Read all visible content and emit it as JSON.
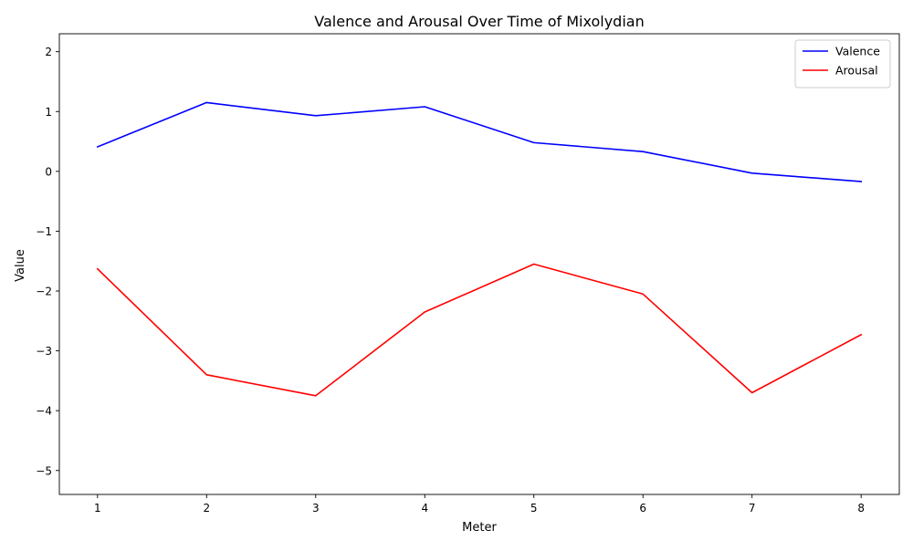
{
  "chart_data": {
    "type": "line",
    "title": "Valence and Arousal Over Time of Mixolydian",
    "xlabel": "Meter",
    "ylabel": "Value",
    "x": [
      1,
      2,
      3,
      4,
      5,
      6,
      7,
      8
    ],
    "xlim": [
      0.65,
      8.35
    ],
    "ylim": [
      -5.4,
      2.3
    ],
    "x_ticks": [
      "1",
      "2",
      "3",
      "4",
      "5",
      "6",
      "7",
      "8"
    ],
    "y_ticks": [
      2,
      1,
      0,
      -1,
      -2,
      -3,
      -4,
      -5
    ],
    "y_tick_labels": [
      "2",
      "1",
      "0",
      "−1",
      "−2",
      "−3",
      "−4",
      "−5"
    ],
    "grid": false,
    "legend_position": "top-right",
    "series": [
      {
        "name": "Valence",
        "color": "#0000ff",
        "values": [
          0.41,
          1.15,
          0.93,
          1.08,
          0.48,
          0.33,
          -0.03,
          -0.17
        ]
      },
      {
        "name": "Arousal",
        "color": "#ff0000",
        "values": [
          -1.63,
          -3.4,
          -3.75,
          -2.35,
          -1.55,
          -2.05,
          -3.7,
          -2.73
        ]
      }
    ]
  }
}
